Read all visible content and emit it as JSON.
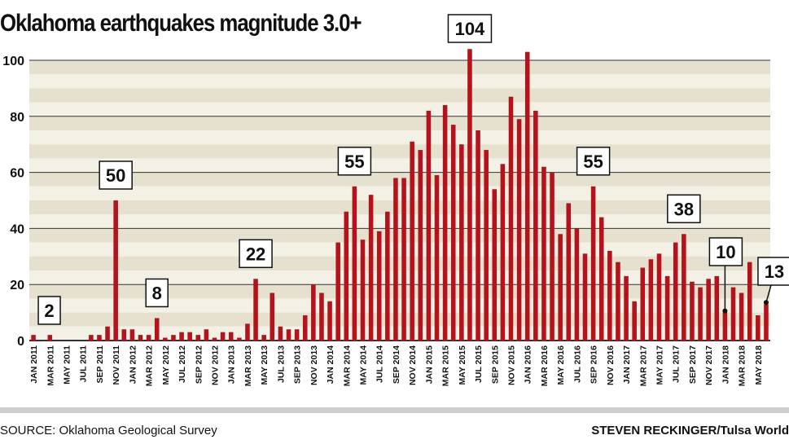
{
  "title": "Oklahoma earthquakes magnitude 3.0+",
  "source": "SOURCE: Oklahoma Geological Survey",
  "credit": "STEVEN RECKINGER/Tulsa World",
  "colors": {
    "bar": "#b5121b",
    "band_light": "#f3f0e6",
    "band_dark": "#e6e1cf",
    "gridline": "#333333",
    "rule": "#cfcfcf"
  },
  "chart_data": {
    "type": "bar",
    "title": "Oklahoma earthquakes magnitude 3.0+",
    "xlabel": "",
    "ylabel": "",
    "ylim": [
      0,
      100
    ],
    "yticks": [
      0,
      20,
      40,
      60,
      80,
      100
    ],
    "grid": true,
    "categories": [
      "JAN 2011",
      "FEB 2011",
      "MAR 2011",
      "APR 2011",
      "MAY 2011",
      "JUN 2011",
      "JUL 2011",
      "AUG 2011",
      "SEP 2011",
      "OCT 2011",
      "NOV 2011",
      "DEC 2011",
      "JAN 2012",
      "FEB 2012",
      "MAR 2012",
      "APR 2012",
      "MAY 2012",
      "JUN 2012",
      "JUL 2012",
      "AUG 2012",
      "SEP 2012",
      "OCT 2012",
      "NOV 2012",
      "DEC 2012",
      "JAN 2013",
      "FEB 2013",
      "MAR 2013",
      "APR 2013",
      "MAY 2013",
      "JUN 2013",
      "JUL 2013",
      "AUG 2013",
      "SEP 2013",
      "OCT 2013",
      "NOV 2013",
      "DEC 2013",
      "JAN 2014",
      "FEB 2014",
      "MAR 2014",
      "APR 2014",
      "MAY 2014",
      "JUN 2014",
      "JUL 2014",
      "AUG 2014",
      "SEP 2014",
      "OCT 2014",
      "NOV 2014",
      "DEC 2014",
      "JAN 2015",
      "FEB 2015",
      "MAR 2015",
      "APR 2015",
      "MAY 2015",
      "JUN 2015",
      "JUL 2015",
      "AUG 2015",
      "SEP 2015",
      "OCT 2015",
      "NOV 2015",
      "DEC 2015",
      "JAN 2016",
      "FEB 2016",
      "MAR 2016",
      "APR 2016",
      "MAY 2016",
      "JUN 2016",
      "JUL 2016",
      "AUG 2016",
      "SEP 2016",
      "OCT 2016",
      "NOV 2016",
      "DEC 2016",
      "JAN 2017",
      "FEB 2017",
      "MAR 2017",
      "APR 2017",
      "MAY 2017",
      "JUN 2017",
      "JUL 2017",
      "AUG 2017",
      "SEP 2017",
      "OCT 2017",
      "NOV 2017",
      "DEC 2017",
      "JAN 2018",
      "FEB 2018",
      "MAR 2018",
      "APR 2018",
      "MAY 2018",
      "JUN 2018"
    ],
    "tick_labels": [
      "JAN 2011",
      "MAR 2011",
      "MAY 2011",
      "JUL 2011",
      "SEP 2011",
      "NOV 2011",
      "JAN 2012",
      "MAR 2012",
      "MAY 2012",
      "JUL 2012",
      "SEP 2012",
      "NOV 2012",
      "JAN 2013",
      "MAR 2013",
      "MAY 2013",
      "JUL 2013",
      "SEP 2013",
      "NOV 2013",
      "JAN 2014",
      "MAR 2014",
      "MAY 2014",
      "JUL 2014",
      "SEP 2014",
      "NOV 2014",
      "JAN 2015",
      "MAR 2015",
      "MAY 2015",
      "JUL 2015",
      "SEP 2015",
      "NOV 2015",
      "JAN 2016",
      "MAR 2016",
      "MAY 2016",
      "JUL 2016",
      "SEP 2016",
      "NOV 2016",
      "JAN 2017",
      "MAR 2017",
      "MAY 2017",
      "JUL 2017",
      "SEP 2017",
      "NOV 2017",
      "JAN 2018",
      "MAR 2018",
      "MAY 2018"
    ],
    "values": [
      2,
      0,
      2,
      0,
      0,
      0,
      0,
      2,
      2,
      5,
      50,
      4,
      4,
      2,
      2,
      8,
      1,
      2,
      3,
      3,
      2,
      4,
      1,
      3,
      3,
      1,
      6,
      22,
      2,
      17,
      5,
      4,
      4,
      9,
      20,
      17,
      14,
      35,
      46,
      55,
      36,
      52,
      39,
      46,
      58,
      58,
      71,
      68,
      82,
      59,
      84,
      77,
      70,
      104,
      75,
      68,
      54,
      63,
      87,
      79,
      103,
      82,
      62,
      60,
      38,
      49,
      40,
      31,
      55,
      44,
      32,
      28,
      23,
      14,
      26,
      29,
      31,
      23,
      35,
      38,
      21,
      19,
      22,
      23,
      10,
      19,
      17,
      28,
      9,
      13
    ],
    "callouts": [
      {
        "label": "2",
        "category": "JAN 2011",
        "value": 2
      },
      {
        "label": "50",
        "category": "NOV 2011",
        "value": 50
      },
      {
        "label": "8",
        "category": "APR 2012",
        "value": 8
      },
      {
        "label": "22",
        "category": "APR 2013",
        "value": 22
      },
      {
        "label": "55",
        "category": "APR 2014",
        "value": 55
      },
      {
        "label": "104",
        "category": "JUN 2015",
        "value": 104
      },
      {
        "label": "55",
        "category": "SEP 2016",
        "value": 55
      },
      {
        "label": "38",
        "category": "AUG 2017",
        "value": 38
      },
      {
        "label": "10",
        "category": "JAN 2018",
        "value": 10
      },
      {
        "label": "13",
        "category": "JUN 2018",
        "value": 13
      }
    ]
  }
}
